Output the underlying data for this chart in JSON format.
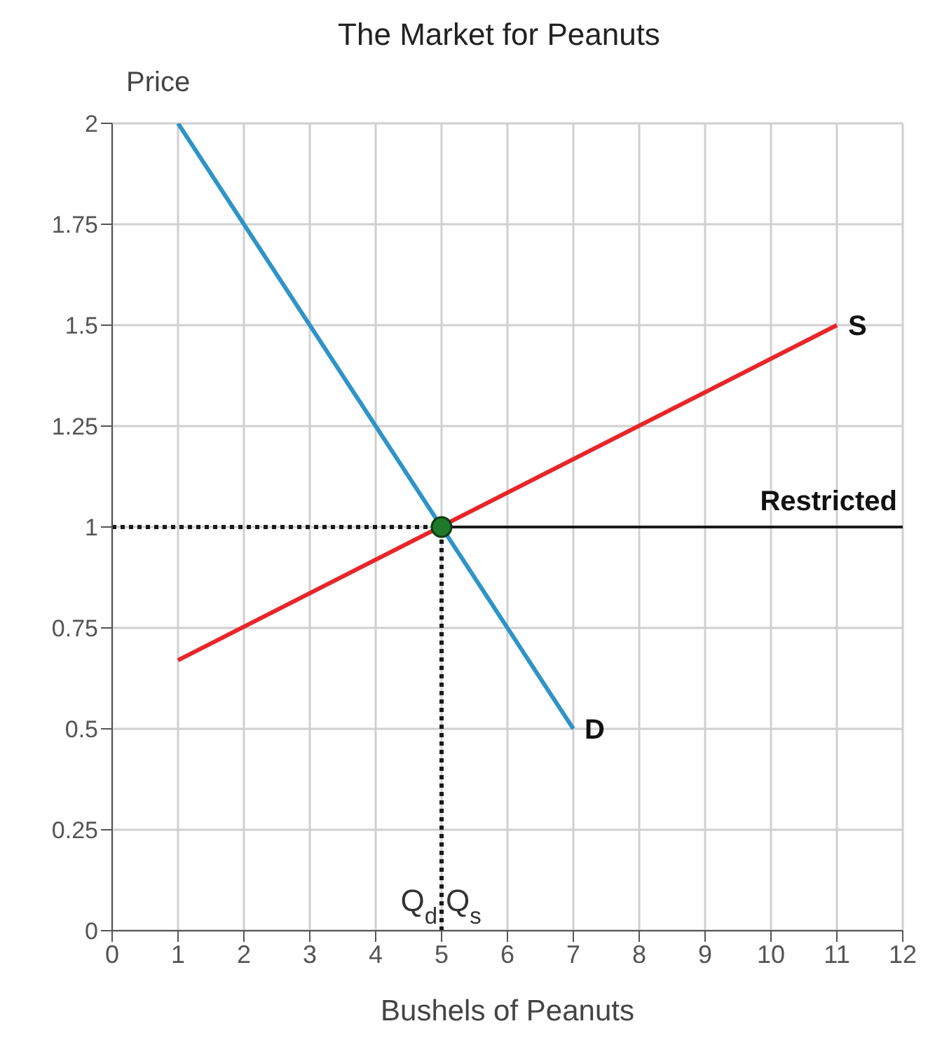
{
  "chart_data": {
    "type": "line",
    "title": "The Market for Peanuts",
    "xlabel": "Bushels of Peanuts",
    "ylabel": "Price",
    "series": [
      {
        "name": "D",
        "color": "#2e94c8",
        "x": [
          1,
          7
        ],
        "values": [
          2,
          0.5
        ]
      },
      {
        "name": "S",
        "color": "#e8262a",
        "x": [
          1,
          11
        ],
        "values": [
          0.67,
          1.5
        ]
      },
      {
        "name": "Restricted",
        "color": "#1a1a1a",
        "x": [
          5,
          12
        ],
        "values": [
          1,
          1
        ]
      },
      {
        "color": "#1a1a1a",
        "x": [
          0,
          5
        ],
        "values": [
          1,
          1
        ],
        "line_style": "dotted"
      },
      {
        "color": "#1a1a1a",
        "x": [
          5,
          5
        ],
        "values": [
          0,
          1
        ],
        "line_style": "dotted"
      },
      {
        "type": "scatter",
        "color": "#1e7a2a",
        "x": [
          5
        ],
        "values": [
          1
        ],
        "marker": "circle"
      }
    ],
    "annotations": [
      {
        "text": "Q$_{d}$",
        "x": 5,
        "y": 0
      },
      {
        "text": "Q$_{s}$",
        "x": 5,
        "y": 0
      }
    ],
    "xlim": [
      0,
      12
    ],
    "xticks": [
      0,
      1,
      2,
      3,
      4,
      5,
      6,
      7,
      8,
      9,
      10,
      11,
      12
    ],
    "ylim": [
      0,
      2
    ],
    "yticks": [
      0,
      0.25,
      0.5,
      0.75,
      1,
      1.25,
      1.5,
      1.75,
      2
    ],
    "grid": true,
    "legend": false,
    "marker": "none",
    "line_style": "solid"
  }
}
